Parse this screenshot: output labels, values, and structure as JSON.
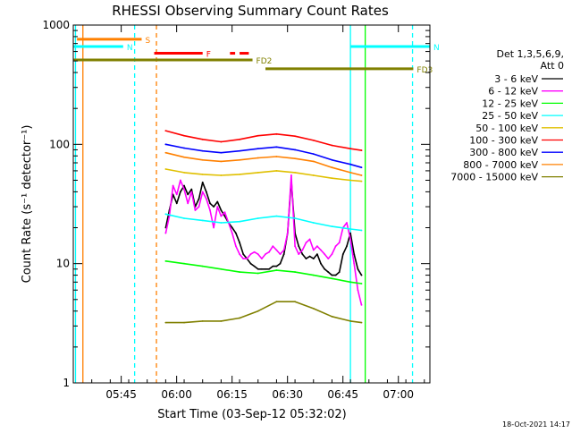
{
  "chart_data": {
    "type": "line",
    "title": "RHESSI Observing Summary Count Rates",
    "xlabel": "Start Time (03-Sep-12 05:32:02)",
    "ylabel": "Count Rate (s⁻¹ detector⁻¹)",
    "yscale": "log",
    "ylim": [
      1,
      1000
    ],
    "xlim_minutes": [
      0,
      96.5
    ],
    "x_ticks": [
      {
        "label": "05:45",
        "min": 12.97
      },
      {
        "label": "06:00",
        "min": 27.97
      },
      {
        "label": "06:15",
        "min": 42.97
      },
      {
        "label": "06:30",
        "min": 57.97
      },
      {
        "label": "06:45",
        "min": 72.97
      },
      {
        "label": "07:00",
        "min": 87.97
      }
    ],
    "y_ticks": [
      {
        "label": "1",
        "v": 1
      },
      {
        "label": "10",
        "v": 10
      },
      {
        "label": "100",
        "v": 100
      },
      {
        "label": "1000",
        "v": 1000
      }
    ],
    "legend_header": [
      "Det 1,3,5,6,9,",
      "Att 0"
    ],
    "legend_position": "right",
    "series": [
      {
        "name": "3 - 6 keV",
        "color": "#000000",
        "x": [
          25,
          26,
          27,
          28,
          29,
          30,
          31,
          32,
          33,
          34,
          35,
          36,
          37,
          38,
          39,
          40,
          41,
          42,
          43,
          44,
          45,
          46,
          47,
          48,
          49,
          50,
          51,
          52,
          53,
          54,
          55,
          56,
          57,
          58,
          59,
          60,
          61,
          62,
          63,
          64,
          65,
          66,
          67,
          68,
          69,
          70,
          71,
          72,
          73,
          74,
          75,
          76,
          77,
          78
        ],
        "y": [
          20,
          28,
          38,
          32,
          40,
          45,
          38,
          42,
          30,
          35,
          48,
          40,
          32,
          30,
          33,
          28,
          25,
          22,
          20,
          18,
          15,
          12,
          11,
          10,
          9.5,
          9,
          9,
          9,
          9,
          9.5,
          9.5,
          10,
          12,
          18,
          50,
          18,
          14,
          12,
          11,
          11.5,
          11,
          12,
          10,
          9,
          8.5,
          8,
          8,
          8.5,
          12,
          14,
          18,
          12,
          9,
          8
        ]
      },
      {
        "name": "6 - 12 keV",
        "color": "#ff00ff",
        "x": [
          25,
          26,
          27,
          28,
          29,
          30,
          31,
          32,
          33,
          34,
          35,
          36,
          37,
          38,
          39,
          40,
          41,
          42,
          43,
          44,
          45,
          46,
          47,
          48,
          49,
          50,
          51,
          52,
          53,
          54,
          55,
          56,
          57,
          58,
          59,
          60,
          61,
          62,
          63,
          64,
          65,
          66,
          67,
          68,
          69,
          70,
          71,
          72,
          73,
          74,
          75,
          76,
          77,
          78
        ],
        "y": [
          18,
          25,
          45,
          38,
          50,
          42,
          32,
          40,
          28,
          30,
          40,
          35,
          28,
          20,
          30,
          25,
          27,
          22,
          18,
          14,
          12,
          11,
          11,
          12,
          12.5,
          12,
          11,
          12,
          12.5,
          14,
          13,
          12,
          13,
          18,
          55,
          14,
          12,
          13,
          15,
          16,
          13,
          14,
          13,
          12,
          11,
          12,
          14,
          15,
          20,
          22,
          16,
          10,
          6,
          4.5
        ]
      },
      {
        "name": "12 - 25 keV",
        "color": "#00ff00",
        "x": [
          25,
          30,
          35,
          40,
          45,
          50,
          55,
          60,
          65,
          70,
          75,
          78
        ],
        "y": [
          10.5,
          10,
          9.5,
          9,
          8.5,
          8.3,
          8.8,
          8.5,
          8,
          7.5,
          7,
          6.8
        ]
      },
      {
        "name": "25 - 50 keV",
        "color": "#00ffff",
        "x": [
          25,
          30,
          35,
          40,
          45,
          50,
          55,
          60,
          65,
          70,
          75,
          78
        ],
        "y": [
          26,
          24,
          23,
          22,
          22.5,
          24,
          25,
          24,
          22,
          20.5,
          19.5,
          19
        ]
      },
      {
        "name": "50 - 100 keV",
        "color": "#e0c000",
        "x": [
          25,
          30,
          35,
          40,
          45,
          50,
          55,
          60,
          65,
          70,
          75,
          78
        ],
        "y": [
          62,
          58,
          56,
          55,
          56,
          58,
          60,
          58,
          55,
          52,
          50,
          49
        ]
      },
      {
        "name": "100 - 300 keV",
        "color": "#ff0000",
        "x": [
          25,
          30,
          35,
          40,
          45,
          50,
          55,
          60,
          65,
          70,
          75,
          78
        ],
        "y": [
          130,
          118,
          110,
          105,
          110,
          118,
          122,
          117,
          108,
          98,
          92,
          89
        ]
      },
      {
        "name": "300 - 800 keV",
        "color": "#0000ff",
        "x": [
          25,
          30,
          35,
          40,
          45,
          50,
          55,
          60,
          65,
          70,
          75,
          78
        ],
        "y": [
          100,
          93,
          88,
          85,
          88,
          92,
          95,
          90,
          83,
          74,
          68,
          64
        ]
      },
      {
        "name": "800 - 7000 keV",
        "color": "#ff8000",
        "x": [
          25,
          30,
          35,
          40,
          45,
          50,
          55,
          60,
          65,
          70,
          75,
          78
        ],
        "y": [
          85,
          78,
          74,
          72,
          74,
          77,
          79,
          76,
          72,
          64,
          58,
          55
        ]
      },
      {
        "name": "7000 - 15000 keV",
        "color": "#808000",
        "x": [
          25,
          30,
          35,
          40,
          45,
          50,
          55,
          60,
          65,
          70,
          75,
          78
        ],
        "y": [
          3.2,
          3.2,
          3.3,
          3.3,
          3.5,
          4,
          4.8,
          4.8,
          4.2,
          3.6,
          3.3,
          3.2
        ]
      }
    ],
    "flag_bars": [
      {
        "label": "S",
        "color": "#ff8000",
        "y": 760,
        "x0": 1.0,
        "x1": 18.5
      },
      {
        "label": "N",
        "color": "#00ffff",
        "y": 660,
        "x0": 0,
        "x1": 13.5
      },
      {
        "label": "N",
        "color": "#00ffff",
        "y": 660,
        "x0": 75.0,
        "x1": 96.5
      },
      {
        "label": "F",
        "color": "#ff0000",
        "y": 580,
        "x0": 21.9,
        "x1": 35.0
      },
      {
        "label": "",
        "color": "#ff0000",
        "y": 580,
        "x0": 42.4,
        "x1": 43.8
      },
      {
        "label": "",
        "color": "#ff0000",
        "y": 580,
        "x0": 45.0,
        "x1": 47.5
      },
      {
        "label": "FD2",
        "color": "#808000",
        "y": 510,
        "x0": 0,
        "x1": 48.5
      },
      {
        "label": "FD3",
        "color": "#808000",
        "y": 430,
        "x0": 52.0,
        "x1": 92.0
      }
    ],
    "vertical_lines": [
      {
        "min": 0.6,
        "color": "#00ffff",
        "style": "solid"
      },
      {
        "min": 2.6,
        "color": "#ff8000",
        "style": "solid"
      },
      {
        "min": 16.6,
        "color": "#00ffff",
        "style": "dashed"
      },
      {
        "min": 22.5,
        "color": "#ff8000",
        "style": "dashed"
      },
      {
        "min": 75.0,
        "color": "#00ffff",
        "style": "solid"
      },
      {
        "min": 79.0,
        "color": "#00ff00",
        "style": "solid"
      },
      {
        "min": 91.8,
        "color": "#00ffff",
        "style": "dashed"
      }
    ],
    "timestamp": "18-Oct-2021 14:17"
  }
}
